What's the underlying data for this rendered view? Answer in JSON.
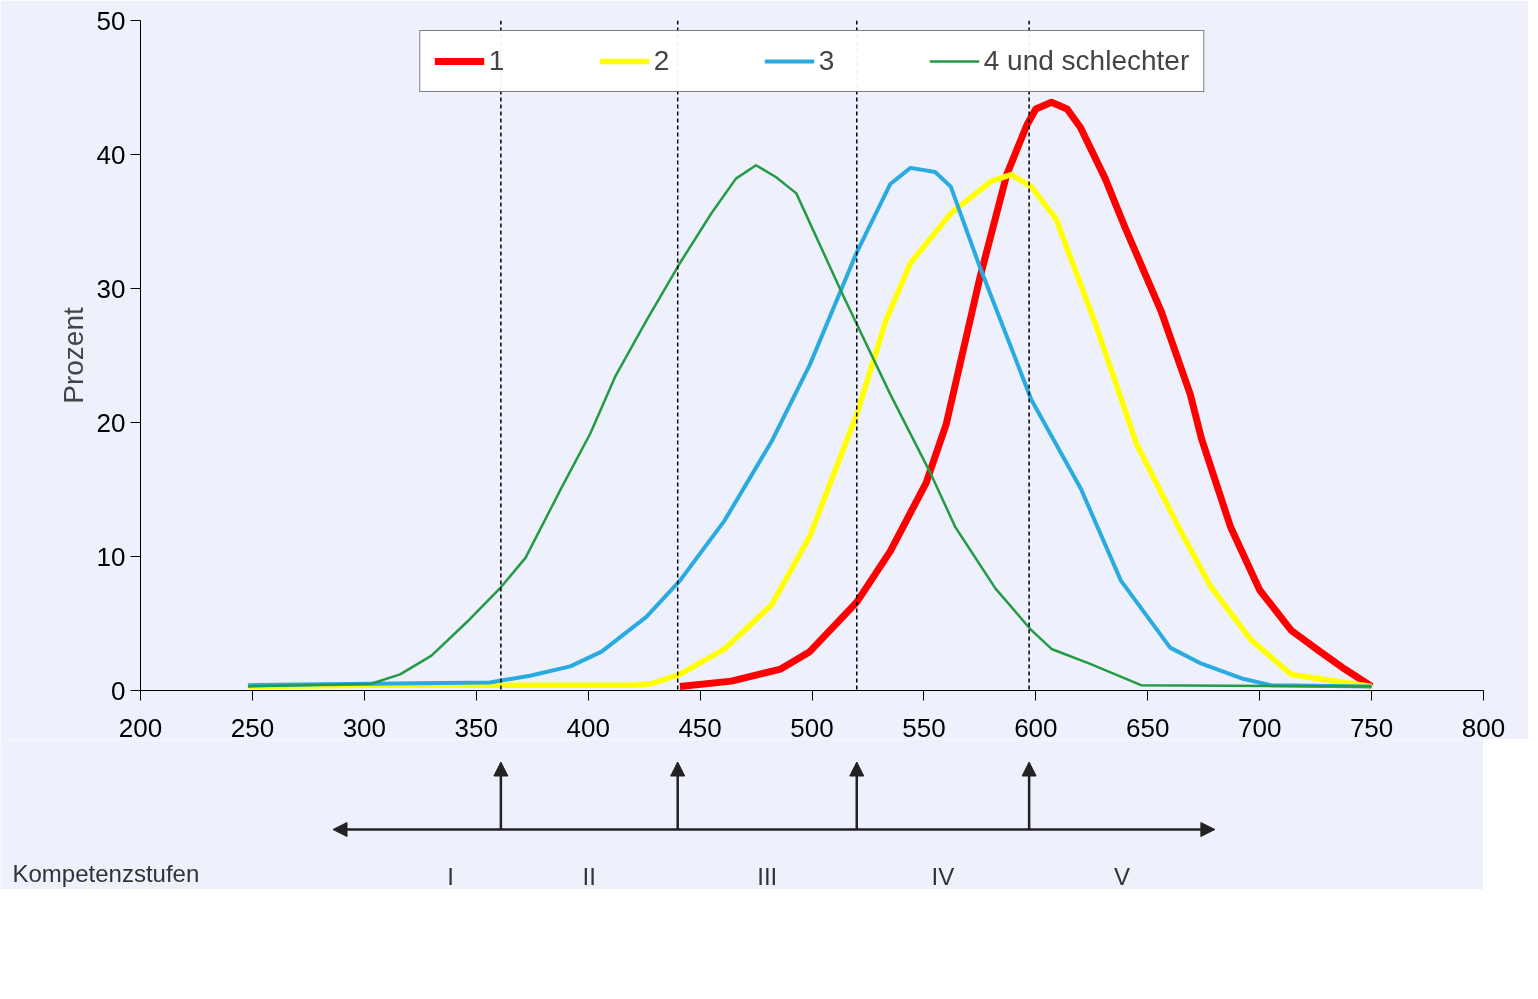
{
  "chart_data": {
    "type": "line",
    "ylabel": "Prozent",
    "xlim": [
      200,
      800
    ],
    "xticks": [
      200,
      250,
      300,
      350,
      400,
      450,
      500,
      550,
      600,
      650,
      700,
      750,
      800
    ],
    "ylim": [
      0,
      50
    ],
    "yticks": [
      0,
      10,
      20,
      30,
      40,
      50
    ],
    "grid": false,
    "legend": "top",
    "marker": "none",
    "line_style": "solid",
    "series": [
      {
        "name": "1",
        "color": "#ff0000",
        "x": [
          441,
          464,
          486,
          499,
          520,
          535,
          551,
          560,
          575,
          587,
          596,
          600,
          607,
          614,
          620,
          631,
          640,
          656,
          669,
          674,
          687,
          700,
          714,
          727,
          738,
          750
        ],
        "values": [
          0.3,
          0.7,
          1.6,
          2.9,
          6.6,
          10.4,
          15.5,
          19.9,
          30.8,
          38.5,
          42.2,
          43.4,
          43.9,
          43.4,
          42.0,
          38.2,
          34.5,
          28.3,
          22.1,
          18.8,
          12.2,
          7.5,
          4.5,
          2.9,
          1.6,
          0.3
        ]
      },
      {
        "name": "2",
        "color": "#ffff00",
        "x": [
          248,
          303,
          356,
          420,
          428,
          441,
          461,
          482,
          499,
          520,
          533,
          544,
          562,
          580,
          589,
          598,
          609,
          627,
          645,
          665,
          678,
          696,
          714,
          750
        ],
        "values": [
          0.3,
          0.4,
          0.4,
          0.4,
          0.5,
          1.2,
          3.1,
          6.4,
          11.5,
          20.6,
          27.6,
          31.9,
          35.6,
          38.0,
          38.5,
          37.6,
          35.2,
          27.2,
          18.4,
          11.8,
          7.8,
          3.8,
          1.2,
          0.3
        ]
      },
      {
        "name": "3",
        "color": "#29abe2",
        "x": [
          248,
          303,
          356,
          374,
          392,
          406,
          426,
          441,
          461,
          482,
          499,
          520,
          535,
          544,
          555,
          562,
          575,
          598,
          620,
          638,
          660,
          674,
          692,
          705,
          750
        ],
        "values": [
          0.4,
          0.5,
          0.6,
          1.1,
          1.8,
          2.9,
          5.5,
          8.2,
          12.7,
          18.6,
          24.3,
          32.7,
          37.8,
          39.0,
          38.7,
          37.6,
          31.6,
          21.7,
          15.1,
          8.2,
          3.2,
          2.0,
          0.9,
          0.4,
          0.3
        ]
      },
      {
        "name": "4 und schlechter",
        "color": "#239b45",
        "x": [
          248,
          303,
          316,
          330,
          347,
          361,
          372,
          388,
          401,
          412,
          426,
          441,
          455,
          466,
          475,
          484,
          493,
          513,
          535,
          553,
          564,
          582,
          598,
          607,
          624,
          647,
          750
        ],
        "values": [
          0.3,
          0.5,
          1.2,
          2.6,
          5.3,
          7.7,
          9.9,
          15.1,
          19.2,
          23.4,
          27.6,
          31.9,
          35.6,
          38.2,
          39.2,
          38.3,
          37.1,
          29.8,
          22.1,
          16.2,
          12.2,
          7.6,
          4.5,
          3.1,
          2.0,
          0.4,
          0.3
        ]
      }
    ],
    "ref_lines": [
      {
        "axis": "x",
        "value": 361,
        "color": "#000000",
        "line_style": "dashed"
      },
      {
        "axis": "x",
        "value": 440,
        "color": "#000000",
        "line_style": "dashed"
      },
      {
        "axis": "x",
        "value": 520,
        "color": "#000000",
        "line_style": "dashed"
      },
      {
        "axis": "x",
        "value": 597,
        "color": "#000000",
        "line_style": "dashed"
      }
    ],
    "annotations": [
      "Kompetenzstufen",
      "I",
      "II",
      "III",
      "IV",
      "V"
    ]
  }
}
